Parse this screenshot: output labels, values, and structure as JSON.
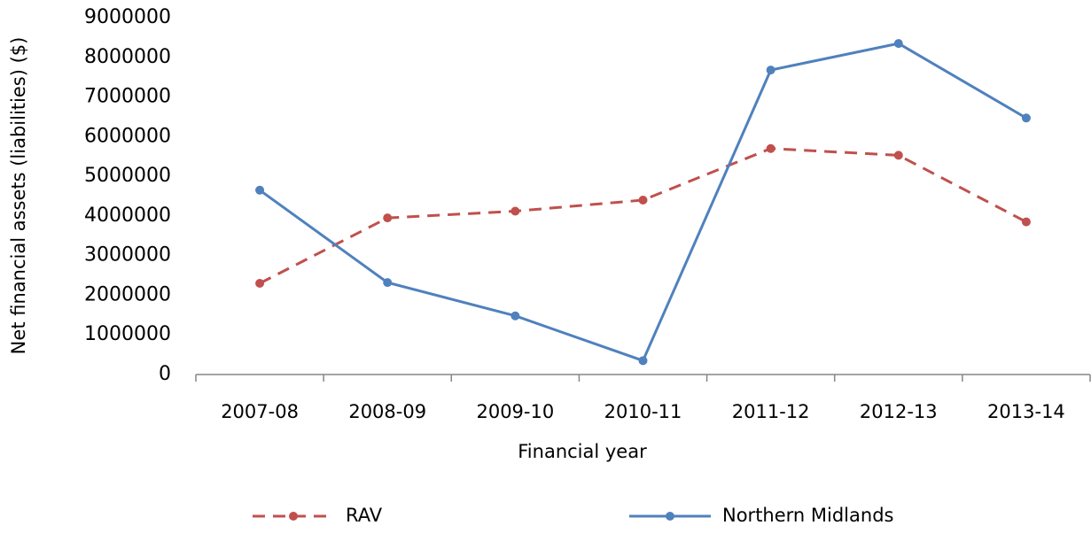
{
  "chart_data": {
    "type": "line",
    "x_label": "Financial year",
    "y_label": "Net financial assets (liabilities) ($)",
    "categories": [
      "2007-08",
      "2008-09",
      "2009-10",
      "2010-11",
      "2011-12",
      "2012-13",
      "2013-14"
    ],
    "series": [
      {
        "name": "RAV",
        "color": "#c0504d",
        "dashed": true,
        "values": [
          2300000,
          3950000,
          4120000,
          4400000,
          5700000,
          5530000,
          3850000
        ]
      },
      {
        "name": "Northern Midlands",
        "color": "#4f81bd",
        "dashed": false,
        "values": [
          4650000,
          2320000,
          1480000,
          350000,
          7680000,
          8350000,
          6470000
        ]
      }
    ],
    "ylim": [
      0,
      9000000
    ],
    "yticks": [
      0,
      1000000,
      2000000,
      3000000,
      4000000,
      5000000,
      6000000,
      7000000,
      8000000,
      9000000
    ],
    "grid": false,
    "legend": "bottom"
  }
}
